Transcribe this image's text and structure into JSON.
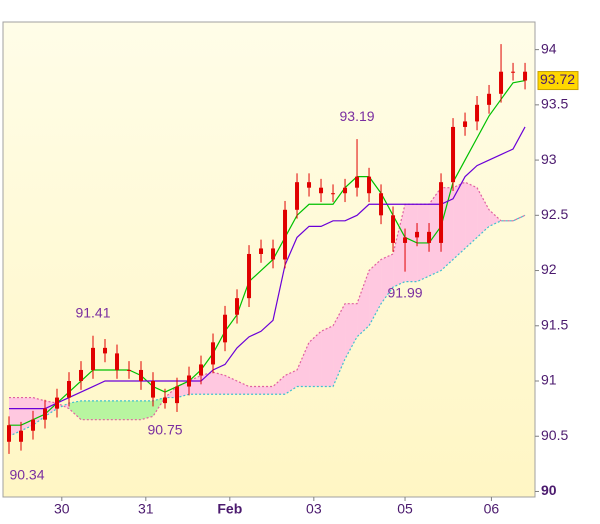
{
  "chart_data": {
    "type": "candlestick",
    "x": [
      0.5,
      1.5,
      2.5,
      3.5,
      4.5,
      5.5,
      6.5,
      7.5,
      8.5,
      9.5,
      10.5,
      11.5,
      12.5,
      13.5,
      14.5,
      15.5,
      16.5,
      17.5,
      18.5,
      19.5,
      20.5,
      21.5,
      22.5,
      23.5,
      24.5,
      25.5,
      26.5,
      27.5,
      28.5,
      29.5,
      30.5,
      31.5,
      32.5,
      33.5,
      34.5,
      35.5,
      36.5,
      37.5,
      38.5,
      39.5,
      40.5,
      41.5,
      42.5,
      43.5
    ],
    "open": [
      90.6,
      90.45,
      90.55,
      90.65,
      90.75,
      90.85,
      91.0,
      91.1,
      91.3,
      91.25,
      91.1,
      91.1,
      91.0,
      90.85,
      90.8,
      90.95,
      91.05,
      91.15,
      91.35,
      91.6,
      91.75,
      92.15,
      92.2,
      92.1,
      92.55,
      92.8,
      92.75,
      92.7,
      92.7,
      92.75,
      92.85,
      92.7,
      92.5,
      92.25,
      92.3,
      92.35,
      92.25,
      92.8,
      93.3,
      93.35,
      93.5,
      93.6,
      93.8,
      93.8
    ],
    "high": [
      90.68,
      90.63,
      90.73,
      90.83,
      90.93,
      91.08,
      91.18,
      91.41,
      91.38,
      91.33,
      91.18,
      91.18,
      91.08,
      90.93,
      91.03,
      91.13,
      91.23,
      91.43,
      91.68,
      91.83,
      92.23,
      92.28,
      92.28,
      92.63,
      92.88,
      92.88,
      92.83,
      92.78,
      92.83,
      93.19,
      92.93,
      92.78,
      92.58,
      92.38,
      92.43,
      92.43,
      92.88,
      93.38,
      93.43,
      93.58,
      93.68,
      94.05,
      93.88,
      93.88
    ],
    "low": [
      90.34,
      90.37,
      90.47,
      90.57,
      90.67,
      90.77,
      90.92,
      91.02,
      91.17,
      91.02,
      91.02,
      90.92,
      90.77,
      90.75,
      90.72,
      90.87,
      90.97,
      91.07,
      91.27,
      91.52,
      91.67,
      92.07,
      92.02,
      92.02,
      92.47,
      92.67,
      92.62,
      92.62,
      92.62,
      92.67,
      92.62,
      92.42,
      92.17,
      91.99,
      92.22,
      92.17,
      92.17,
      92.72,
      93.22,
      93.27,
      93.42,
      93.52,
      93.72,
      93.64
    ],
    "close": [
      90.45,
      90.55,
      90.65,
      90.75,
      90.85,
      91.0,
      91.1,
      91.3,
      91.25,
      91.1,
      91.1,
      91.0,
      90.85,
      90.8,
      90.95,
      91.05,
      91.15,
      91.35,
      91.6,
      91.75,
      92.15,
      92.2,
      92.1,
      92.55,
      92.8,
      92.75,
      92.7,
      92.7,
      92.75,
      92.85,
      92.7,
      92.5,
      92.25,
      92.3,
      92.35,
      92.25,
      92.8,
      93.3,
      93.35,
      93.5,
      93.6,
      93.8,
      93.8,
      93.72
    ],
    "candle_color": "#e00000",
    "lines": [
      {
        "color": "#00c000",
        "values": [
          90.6,
          90.6,
          90.65,
          90.7,
          90.8,
          90.9,
          91.0,
          91.1,
          91.1,
          91.1,
          91.1,
          91.05,
          90.95,
          90.9,
          90.95,
          91.0,
          91.1,
          91.25,
          91.45,
          91.6,
          91.9,
          92.0,
          92.1,
          92.3,
          92.5,
          92.6,
          92.6,
          92.6,
          92.75,
          92.85,
          92.85,
          92.7,
          92.5,
          92.3,
          92.25,
          92.25,
          92.4,
          92.8,
          93.0,
          93.2,
          93.4,
          93.55,
          93.7,
          93.72
        ]
      },
      {
        "color": "#6a00d8",
        "values": [
          90.75,
          90.75,
          90.75,
          90.75,
          90.8,
          90.85,
          90.9,
          90.95,
          91.0,
          91.0,
          91.0,
          91.0,
          91.0,
          91.0,
          91.0,
          91.0,
          91.0,
          91.1,
          91.15,
          91.3,
          91.4,
          91.45,
          91.55,
          92.05,
          92.3,
          92.4,
          92.4,
          92.45,
          92.45,
          92.5,
          92.6,
          92.6,
          92.6,
          92.6,
          92.6,
          92.6,
          92.6,
          92.65,
          92.85,
          92.95,
          93.0,
          93.05,
          93.1,
          93.3
        ]
      }
    ],
    "cloud": {
      "a": [
        90.85,
        90.85,
        90.85,
        90.82,
        90.8,
        90.75,
        90.65,
        90.65,
        90.65,
        90.65,
        90.65,
        90.65,
        90.68,
        90.85,
        90.95,
        91.0,
        91.05,
        91.08,
        91.05,
        91.0,
        90.95,
        90.95,
        90.95,
        91.05,
        91.1,
        91.35,
        91.45,
        91.5,
        91.7,
        91.7,
        92.0,
        92.1,
        92.15,
        92.6,
        92.6,
        92.6,
        92.75,
        92.75,
        92.8,
        92.75,
        92.55,
        92.45,
        92.45,
        92.5
      ],
      "b": [
        90.5,
        90.55,
        90.6,
        90.68,
        90.75,
        90.8,
        90.82,
        90.82,
        90.82,
        90.82,
        90.82,
        90.82,
        90.82,
        90.85,
        90.85,
        90.88,
        90.88,
        90.88,
        90.88,
        90.88,
        90.88,
        90.88,
        90.88,
        90.88,
        90.95,
        90.95,
        90.95,
        90.95,
        91.2,
        91.4,
        91.5,
        91.7,
        91.85,
        91.9,
        91.9,
        91.95,
        92.0,
        92.1,
        92.2,
        92.3,
        92.4,
        92.45,
        92.45,
        92.5
      ],
      "up_color": "#ffc8e0",
      "down_color": "#b8f5a0",
      "a_edge_color": "#e060a0",
      "b_edge_color": "#40c0d0"
    },
    "xlim": [
      0,
      44.33
    ],
    "xticks": [
      {
        "value": 4.9,
        "label": "30"
      },
      {
        "value": 11.9,
        "label": "31"
      },
      {
        "value": 18.9,
        "label": "Feb",
        "bold": true
      },
      {
        "value": 25.9,
        "label": "03"
      },
      {
        "value": 33.5,
        "label": "05"
      },
      {
        "value": 40.7,
        "label": "06"
      }
    ],
    "ylim": [
      89.95,
      94.25
    ],
    "yticks": [
      {
        "value": 90,
        "label": "90",
        "bold": true
      },
      90.5,
      91,
      91.5,
      92,
      92.5,
      93,
      93.5,
      94
    ]
  }
}
